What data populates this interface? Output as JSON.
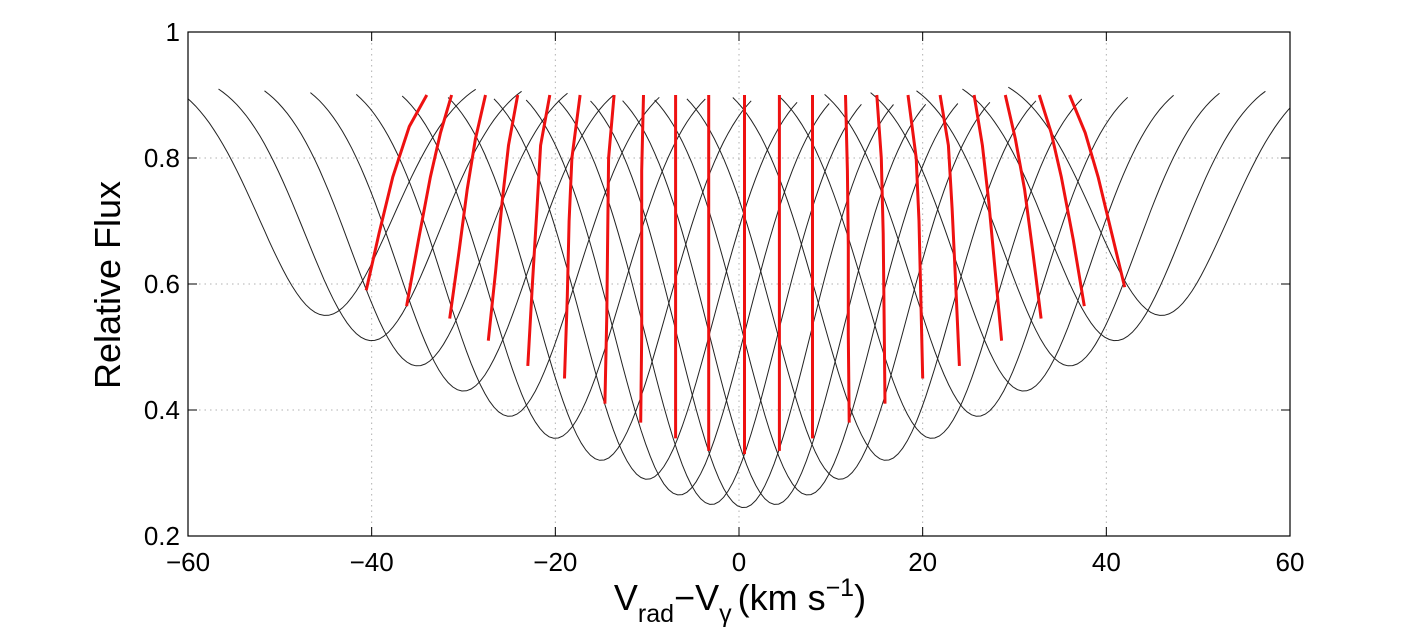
{
  "chart_data": {
    "type": "line",
    "xlim": [
      -60,
      60
    ],
    "ylim": [
      0.2,
      1.0
    ],
    "x_ticks": [
      -60,
      -40,
      -20,
      0,
      20,
      40,
      60
    ],
    "y_ticks": [
      0.2,
      0.4,
      0.6,
      0.8,
      1.0
    ],
    "x_tick_labels": [
      "−60",
      "−40",
      "−20",
      "0",
      "20",
      "40",
      "60"
    ],
    "y_tick_labels": [
      "0.2",
      "0.4",
      "0.6",
      "0.8",
      "1"
    ],
    "ylabel": "Relative Flux",
    "xlabel": {
      "main": "V",
      "sub1": "rad",
      "dash": "−V",
      "sub2": "γ",
      "unit": "(km s",
      "sup": "−1",
      "close": ")"
    },
    "grid": true,
    "line_profiles": {
      "color": "#222222",
      "top_flux": 0.94,
      "series": [
        {
          "center": -45.0,
          "depth_flux": 0.55,
          "half_width": 14.5
        },
        {
          "center": -40.0,
          "depth_flux": 0.51,
          "half_width": 14.5
        },
        {
          "center": -35.0,
          "depth_flux": 0.47,
          "half_width": 14.5
        },
        {
          "center": -30.0,
          "depth_flux": 0.43,
          "half_width": 14.5
        },
        {
          "center": -25.0,
          "depth_flux": 0.39,
          "half_width": 14.5
        },
        {
          "center": -20.0,
          "depth_flux": 0.355,
          "half_width": 14.5
        },
        {
          "center": -15.0,
          "depth_flux": 0.32,
          "half_width": 14.5
        },
        {
          "center": -10.0,
          "depth_flux": 0.29,
          "half_width": 14.5
        },
        {
          "center": -6.5,
          "depth_flux": 0.265,
          "half_width": 14.5
        },
        {
          "center": -3.0,
          "depth_flux": 0.25,
          "half_width": 14.5
        },
        {
          "center": 0.5,
          "depth_flux": 0.245,
          "half_width": 14.5
        },
        {
          "center": 4.0,
          "depth_flux": 0.25,
          "half_width": 14.5
        },
        {
          "center": 7.5,
          "depth_flux": 0.265,
          "half_width": 14.5
        },
        {
          "center": 11.0,
          "depth_flux": 0.29,
          "half_width": 14.5
        },
        {
          "center": 16.0,
          "depth_flux": 0.32,
          "half_width": 14.5
        },
        {
          "center": 21.0,
          "depth_flux": 0.355,
          "half_width": 14.5
        },
        {
          "center": 26.0,
          "depth_flux": 0.39,
          "half_width": 14.5
        },
        {
          "center": 31.0,
          "depth_flux": 0.43,
          "half_width": 14.5
        },
        {
          "center": 36.0,
          "depth_flux": 0.47,
          "half_width": 14.5
        },
        {
          "center": 41.0,
          "depth_flux": 0.51,
          "half_width": 14.5
        },
        {
          "center": 46.0,
          "depth_flux": 0.55,
          "half_width": 14.5
        }
      ]
    },
    "bisectors": {
      "color": "#ee1111",
      "series": [
        {
          "x": [
            -40.6,
            -39.2,
            -37.7,
            -35.9,
            -34.0
          ],
          "y": [
            0.59,
            0.68,
            0.77,
            0.85,
            0.9
          ]
        },
        {
          "x": [
            -36.2,
            -34.9,
            -33.6,
            -32.5,
            -31.3
          ],
          "y": [
            0.565,
            0.67,
            0.77,
            0.84,
            0.9
          ]
        },
        {
          "x": [
            -31.5,
            -30.5,
            -29.6,
            -28.7,
            -27.6
          ],
          "y": [
            0.545,
            0.65,
            0.75,
            0.83,
            0.9
          ]
        },
        {
          "x": [
            -27.3,
            -26.5,
            -25.8,
            -25.1,
            -24.1
          ],
          "y": [
            0.51,
            0.62,
            0.73,
            0.82,
            0.9
          ]
        },
        {
          "x": [
            -23.0,
            -22.5,
            -22.0,
            -21.6,
            -20.6
          ],
          "y": [
            0.47,
            0.6,
            0.72,
            0.82,
            0.9
          ]
        },
        {
          "x": [
            -19.0,
            -18.7,
            -18.5,
            -18.2,
            -17.3
          ],
          "y": [
            0.45,
            0.58,
            0.7,
            0.8,
            0.9
          ]
        },
        {
          "x": [
            -14.6,
            -14.4,
            -14.3,
            -14.2,
            -13.6
          ],
          "y": [
            0.41,
            0.55,
            0.68,
            0.8,
            0.9
          ]
        },
        {
          "x": [
            -10.7,
            -10.6,
            -10.6,
            -10.6,
            -10.4
          ],
          "y": [
            0.38,
            0.52,
            0.66,
            0.78,
            0.9
          ]
        },
        {
          "x": [
            -6.9,
            -6.9,
            -6.9,
            -6.9,
            -6.9
          ],
          "y": [
            0.355,
            0.5,
            0.64,
            0.78,
            0.9
          ]
        },
        {
          "x": [
            -3.3,
            -3.3,
            -3.3,
            -3.3,
            -3.3
          ],
          "y": [
            0.335,
            0.49,
            0.64,
            0.78,
            0.9
          ]
        },
        {
          "x": [
            0.6,
            0.6,
            0.6,
            0.6,
            0.6
          ],
          "y": [
            0.33,
            0.49,
            0.64,
            0.78,
            0.9
          ]
        },
        {
          "x": [
            4.4,
            4.4,
            4.4,
            4.4,
            4.4
          ],
          "y": [
            0.335,
            0.49,
            0.64,
            0.78,
            0.9
          ]
        },
        {
          "x": [
            8.0,
            8.0,
            8.0,
            8.0,
            8.0
          ],
          "y": [
            0.355,
            0.5,
            0.64,
            0.78,
            0.9
          ]
        },
        {
          "x": [
            12.0,
            11.9,
            11.9,
            11.8,
            11.6
          ],
          "y": [
            0.38,
            0.52,
            0.66,
            0.78,
            0.9
          ]
        },
        {
          "x": [
            15.9,
            15.8,
            15.7,
            15.5,
            15.0
          ],
          "y": [
            0.41,
            0.55,
            0.68,
            0.8,
            0.9
          ]
        },
        {
          "x": [
            20.0,
            19.8,
            19.6,
            19.3,
            18.4
          ],
          "y": [
            0.45,
            0.58,
            0.7,
            0.8,
            0.9
          ]
        },
        {
          "x": [
            24.0,
            23.6,
            23.2,
            22.8,
            21.9
          ],
          "y": [
            0.47,
            0.6,
            0.72,
            0.82,
            0.9
          ]
        },
        {
          "x": [
            28.6,
            27.9,
            27.2,
            26.5,
            25.6
          ],
          "y": [
            0.51,
            0.62,
            0.73,
            0.82,
            0.9
          ]
        },
        {
          "x": [
            32.9,
            32.0,
            31.1,
            30.1,
            29.0
          ],
          "y": [
            0.545,
            0.65,
            0.75,
            0.83,
            0.9
          ]
        },
        {
          "x": [
            37.6,
            36.4,
            35.1,
            34.0,
            32.7
          ],
          "y": [
            0.565,
            0.67,
            0.77,
            0.84,
            0.9
          ]
        },
        {
          "x": [
            42.0,
            40.6,
            39.1,
            37.7,
            36.0
          ],
          "y": [
            0.595,
            0.68,
            0.77,
            0.84,
            0.9
          ]
        }
      ]
    }
  }
}
